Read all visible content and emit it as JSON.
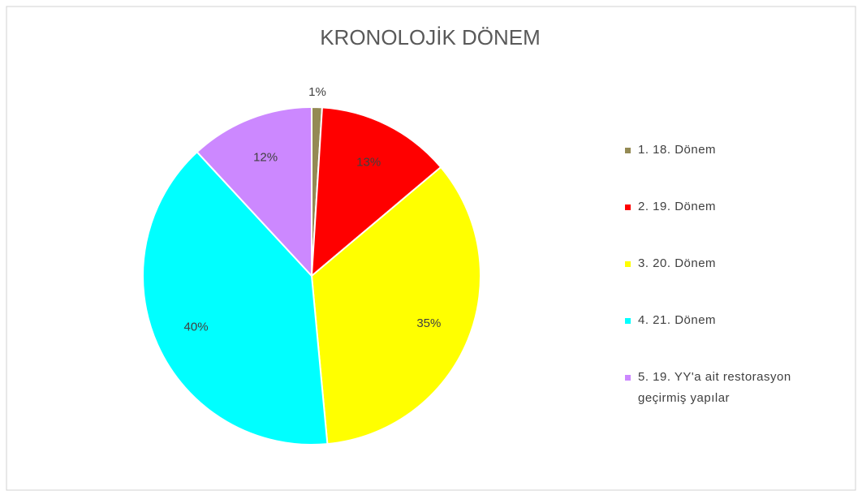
{
  "chart_data": {
    "type": "pie",
    "title": "KRONOLOJİK DÖNEM",
    "categories": [
      "1. 18. Dönem",
      "2. 19. Dönem",
      "3. 20. Dönem",
      "4. 21. Dönem",
      "5. 19. YY'a ait restorasyon geçirmiş yapılar"
    ],
    "values": [
      1,
      13,
      35,
      40,
      12
    ],
    "value_labels": [
      "1%",
      "13%",
      "35%",
      "40%",
      "12%"
    ],
    "colors": [
      "#948a54",
      "#ff0000",
      "#ffff00",
      "#00ffff",
      "#cc88ff"
    ],
    "legend": "right"
  }
}
